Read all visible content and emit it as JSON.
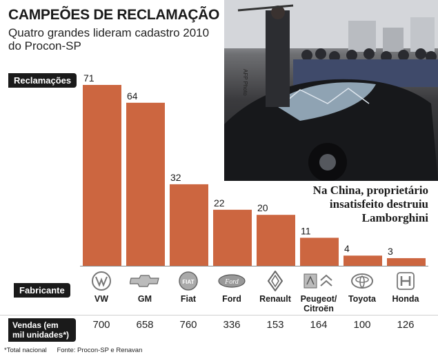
{
  "header": {
    "title": "CAMPEÕES DE RECLAMAÇÃO",
    "subtitle": "Quatro grandes lideram cadastro 2010 do Procon-SP"
  },
  "photo": {
    "credit": "AFP Photo",
    "caption": "Na China, proprietário insatisfeito destruiu Lamborghini"
  },
  "labels": {
    "complaints": "Reclamações",
    "maker": "Fabricante",
    "sales": "Vendas (em mil unidades*)"
  },
  "chart_data": {
    "type": "bar",
    "categories": [
      "VW",
      "GM",
      "Fiat",
      "Ford",
      "Renault",
      "Peugeot/ Citroën",
      "Toyota",
      "Honda"
    ],
    "values": [
      71,
      64,
      32,
      22,
      20,
      11,
      4,
      3
    ],
    "sales": [
      700,
      658,
      760,
      336,
      153,
      164,
      100,
      126
    ],
    "ylabel": "Reclamações",
    "ylim": [
      0,
      71
    ],
    "bar_color": "#cc6640",
    "grid": false,
    "logos": [
      "vw-logo-icon",
      "gm-logo-icon",
      "fiat-logo-icon",
      "ford-logo-icon",
      "renault-logo-icon",
      "peugeot-citroen-logo-icon",
      "toyota-logo-icon",
      "honda-logo-icon"
    ]
  },
  "footer": {
    "note": "*Total nacional",
    "source": "Fonte: Procon-SP e Renavan"
  }
}
